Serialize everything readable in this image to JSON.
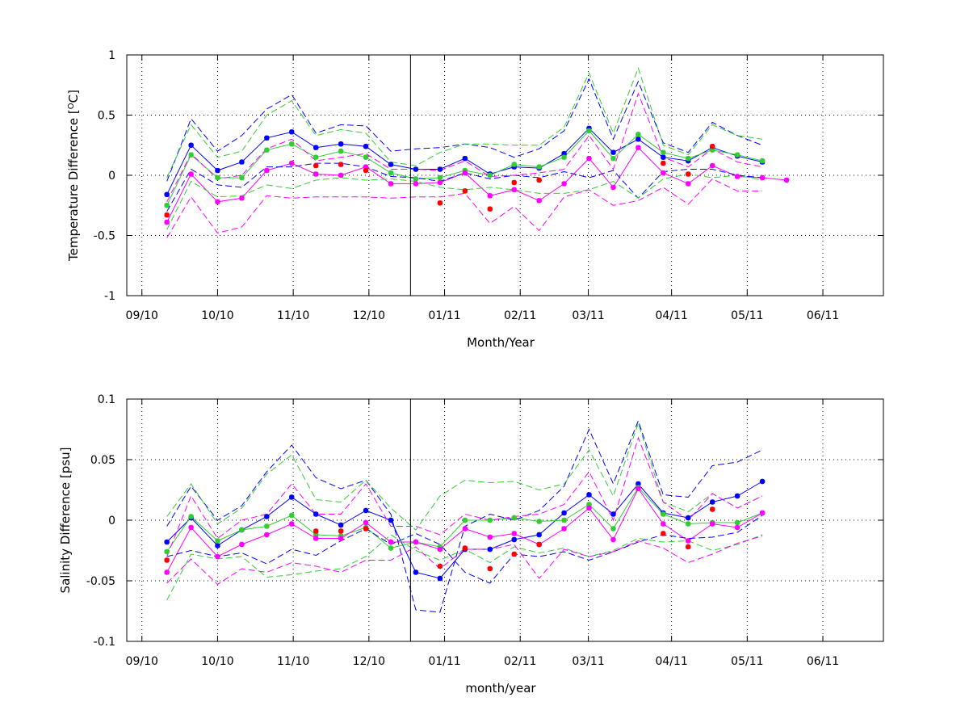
{
  "colors": {
    "blue": "#0000ff",
    "green": "#33cc33",
    "magenta": "#ff00ff",
    "red": "#ff0000",
    "black": "#000000",
    "grid": "#000000"
  },
  "chart_data": [
    {
      "type": "line",
      "title": "",
      "xlabel": "Month/Year",
      "ylabel": "Temperature Difference [°C]",
      "ylabel_pre": "Temperature Difference [",
      "ylabel_sup": "O",
      "ylabel_post": "C]",
      "xlim": [
        0,
        100
      ],
      "ylim": [
        -1,
        1
      ],
      "yticks": [
        -1,
        -0.5,
        0,
        0.5,
        1
      ],
      "ytick_labels": [
        "-1",
        "-0.5",
        "0",
        "0.5",
        "1"
      ],
      "xticks": [
        2,
        12,
        22,
        32,
        42,
        52,
        61,
        72,
        82,
        92
      ],
      "xtick_labels": [
        "09/10",
        "10/10",
        "11/10",
        "12/10",
        "01/11",
        "02/11",
        "03/11",
        "04/11",
        "05/11",
        "06/11"
      ],
      "vline_x": 37.5,
      "grid": true,
      "x": [
        5.3,
        8.5,
        12.0,
        15.2,
        18.5,
        21.8,
        25.0,
        28.3,
        31.6,
        34.9,
        38.2,
        41.4,
        44.7,
        48.0,
        51.2,
        54.5,
        57.8,
        61.1,
        64.3,
        67.6,
        70.9,
        74.2,
        77.4,
        80.7,
        84.0,
        87.2
      ],
      "series": [
        {
          "color": "blue",
          "style": "solid",
          "marker": true,
          "values": [
            -0.16,
            0.25,
            0.04,
            0.11,
            0.31,
            0.36,
            0.23,
            0.26,
            0.24,
            0.09,
            0.05,
            0.05,
            0.14,
            0.01,
            0.07,
            0.06,
            0.18,
            0.39,
            0.19,
            0.3,
            0.15,
            0.12,
            0.23,
            0.16,
            0.11,
            null
          ]
        },
        {
          "color": "green",
          "style": "solid",
          "marker": true,
          "values": [
            -0.25,
            0.17,
            -0.02,
            -0.02,
            0.21,
            0.26,
            0.15,
            0.2,
            0.15,
            0.02,
            -0.03,
            -0.02,
            0.04,
            0.0,
            0.09,
            0.07,
            0.15,
            0.37,
            0.14,
            0.34,
            0.19,
            0.14,
            0.21,
            0.17,
            0.12,
            null
          ]
        },
        {
          "color": "magenta",
          "style": "solid",
          "marker": true,
          "values": [
            -0.39,
            0.01,
            -0.22,
            -0.19,
            0.04,
            0.1,
            0.01,
            0.0,
            0.07,
            -0.07,
            -0.07,
            -0.06,
            0.02,
            -0.17,
            -0.12,
            -0.21,
            -0.07,
            0.14,
            -0.1,
            0.23,
            0.02,
            -0.07,
            0.08,
            -0.01,
            -0.02,
            -0.04
          ]
        },
        {
          "color": "red",
          "style": "none",
          "marker": true,
          "values": [
            -0.33,
            null,
            null,
            null,
            null,
            null,
            0.08,
            0.09,
            0.04,
            null,
            null,
            -0.23,
            -0.13,
            -0.28,
            -0.06,
            -0.04,
            null,
            null,
            null,
            null,
            0.1,
            0.01,
            0.24,
            null,
            null,
            null
          ]
        },
        {
          "color": "blue",
          "style": "dashed",
          "marker": false,
          "values": [
            -0.05,
            0.47,
            0.2,
            0.33,
            0.55,
            0.67,
            0.35,
            0.42,
            0.41,
            0.2,
            0.22,
            0.23,
            0.26,
            0.23,
            0.15,
            0.22,
            0.37,
            0.8,
            0.3,
            0.78,
            0.27,
            0.19,
            0.44,
            0.33,
            0.25,
            null
          ]
        },
        {
          "color": "blue",
          "style": "dashed",
          "marker": false,
          "values": [
            -0.3,
            0.05,
            -0.08,
            -0.1,
            0.07,
            0.07,
            0.1,
            0.1,
            0.07,
            -0.01,
            -0.02,
            -0.05,
            0.02,
            -0.03,
            0.0,
            -0.02,
            0.03,
            -0.02,
            0.04,
            -0.19,
            0.03,
            0.05,
            0.05,
            0.0,
            -0.02,
            null
          ]
        },
        {
          "color": "green",
          "style": "dashed",
          "marker": false,
          "values": [
            -0.02,
            0.42,
            0.15,
            0.2,
            0.5,
            0.62,
            0.33,
            0.38,
            0.35,
            0.11,
            0.08,
            0.19,
            0.26,
            0.26,
            0.25,
            0.25,
            0.4,
            0.85,
            0.35,
            0.89,
            0.25,
            0.17,
            0.42,
            0.33,
            0.3,
            null
          ]
        },
        {
          "color": "green",
          "style": "dashed",
          "marker": false,
          "values": [
            -0.45,
            -0.05,
            -0.18,
            -0.17,
            -0.08,
            -0.11,
            -0.04,
            -0.02,
            -0.04,
            -0.03,
            -0.05,
            -0.1,
            -0.12,
            -0.1,
            -0.12,
            -0.15,
            -0.15,
            -0.12,
            -0.05,
            -0.19,
            -0.03,
            0.01,
            -0.02,
            0.0,
            -0.04,
            null
          ]
        },
        {
          "color": "magenta",
          "style": "dashed",
          "marker": false,
          "values": [
            -0.52,
            -0.18,
            -0.48,
            -0.43,
            -0.17,
            -0.19,
            -0.18,
            -0.18,
            -0.18,
            -0.19,
            -0.18,
            -0.18,
            -0.15,
            -0.4,
            -0.26,
            -0.46,
            -0.18,
            -0.12,
            -0.25,
            -0.21,
            -0.1,
            -0.24,
            -0.03,
            -0.13,
            -0.13,
            null
          ]
        },
        {
          "color": "magenta",
          "style": "dashed",
          "marker": false,
          "values": [
            -0.22,
            0.18,
            -0.03,
            0.0,
            0.22,
            0.3,
            0.12,
            0.15,
            0.18,
            0.05,
            0.05,
            0.04,
            0.12,
            -0.01,
            0.0,
            0.02,
            0.05,
            0.33,
            0.05,
            0.68,
            0.15,
            0.07,
            0.22,
            0.11,
            0.07,
            null
          ]
        }
      ]
    },
    {
      "type": "line",
      "title": "",
      "xlabel": "month/year",
      "ylabel": "Salinity Difference [psu]",
      "xlim": [
        0,
        100
      ],
      "ylim": [
        -0.1,
        0.1
      ],
      "yticks": [
        -0.1,
        -0.05,
        0,
        0.05,
        0.1
      ],
      "ytick_labels": [
        "-0.1",
        "-0.05",
        "0",
        "0.05",
        "0.1"
      ],
      "xticks": [
        2,
        12,
        22,
        32,
        42,
        52,
        61,
        72,
        82,
        92
      ],
      "xtick_labels": [
        "09/10",
        "10/10",
        "11/10",
        "12/10",
        "01/11",
        "02/11",
        "03/11",
        "04/11",
        "05/11",
        "06/11"
      ],
      "vline_x": 37.5,
      "grid": true,
      "x": [
        5.3,
        8.5,
        12.0,
        15.2,
        18.5,
        21.8,
        25.0,
        28.3,
        31.6,
        34.9,
        38.2,
        41.4,
        44.7,
        48.0,
        51.2,
        54.5,
        57.8,
        61.1,
        64.3,
        67.6,
        70.9,
        74.2,
        77.4,
        80.7,
        84.0,
        87.2
      ],
      "series": [
        {
          "color": "blue",
          "style": "solid",
          "marker": true,
          "values": [
            -0.018,
            0.002,
            -0.021,
            -0.008,
            0.003,
            0.019,
            0.005,
            -0.004,
            0.008,
            0.0,
            -0.043,
            -0.048,
            -0.024,
            -0.024,
            -0.016,
            -0.012,
            0.006,
            0.021,
            0.005,
            0.03,
            0.006,
            0.002,
            0.015,
            0.02,
            0.032,
            null
          ]
        },
        {
          "color": "green",
          "style": "solid",
          "marker": true,
          "values": [
            -0.026,
            0.003,
            -0.017,
            -0.008,
            -0.005,
            0.004,
            -0.012,
            -0.013,
            -0.006,
            -0.023,
            -0.018,
            -0.022,
            0.0,
            0.0,
            0.002,
            -0.001,
            0.0,
            0.013,
            -0.007,
            0.027,
            0.005,
            -0.003,
            -0.002,
            -0.002,
            0.006,
            null
          ]
        },
        {
          "color": "magenta",
          "style": "solid",
          "marker": true,
          "values": [
            -0.043,
            -0.006,
            -0.03,
            -0.02,
            -0.012,
            -0.003,
            -0.015,
            -0.015,
            -0.002,
            -0.018,
            -0.018,
            -0.024,
            -0.007,
            -0.014,
            -0.011,
            -0.02,
            -0.007,
            0.01,
            -0.016,
            0.026,
            -0.003,
            -0.017,
            -0.003,
            -0.006,
            0.006,
            null
          ]
        },
        {
          "color": "red",
          "style": "none",
          "marker": true,
          "values": [
            -0.033,
            null,
            null,
            null,
            null,
            null,
            -0.009,
            -0.009,
            -0.007,
            null,
            null,
            -0.038,
            -0.023,
            -0.04,
            -0.028,
            -0.02,
            null,
            null,
            null,
            null,
            -0.011,
            -0.022,
            0.009,
            null,
            null,
            null
          ]
        },
        {
          "color": "blue",
          "style": "dashed",
          "marker": false,
          "values": [
            -0.005,
            0.028,
            0.0,
            0.012,
            0.04,
            0.062,
            0.035,
            0.026,
            0.033,
            0.005,
            -0.074,
            -0.076,
            -0.005,
            0.005,
            0.0,
            0.008,
            0.028,
            0.075,
            0.03,
            0.082,
            0.021,
            0.019,
            0.045,
            0.048,
            0.058,
            null
          ]
        },
        {
          "color": "blue",
          "style": "dashed",
          "marker": false,
          "values": [
            -0.03,
            -0.025,
            -0.03,
            -0.027,
            -0.036,
            -0.024,
            -0.029,
            -0.017,
            -0.007,
            -0.02,
            -0.011,
            -0.02,
            -0.043,
            -0.052,
            -0.028,
            -0.03,
            -0.026,
            -0.033,
            -0.026,
            -0.018,
            -0.012,
            -0.015,
            -0.014,
            -0.01,
            0.004,
            null
          ]
        },
        {
          "color": "green",
          "style": "dashed",
          "marker": false,
          "values": [
            0.003,
            0.03,
            -0.003,
            0.01,
            0.038,
            0.054,
            0.017,
            0.015,
            0.033,
            0.01,
            -0.008,
            0.02,
            0.033,
            0.031,
            0.032,
            0.025,
            0.03,
            0.058,
            0.02,
            0.08,
            0.015,
            0.007,
            0.022,
            0.01,
            0.02,
            null
          ]
        },
        {
          "color": "green",
          "style": "dashed",
          "marker": false,
          "values": [
            -0.066,
            -0.028,
            -0.032,
            -0.03,
            -0.047,
            -0.045,
            -0.042,
            -0.04,
            -0.03,
            -0.012,
            -0.025,
            -0.033,
            -0.024,
            -0.035,
            -0.022,
            -0.027,
            -0.023,
            -0.03,
            -0.025,
            -0.015,
            -0.018,
            -0.017,
            -0.025,
            -0.02,
            -0.012,
            null
          ]
        },
        {
          "color": "magenta",
          "style": "dashed",
          "marker": false,
          "values": [
            -0.052,
            -0.032,
            -0.053,
            -0.04,
            -0.043,
            -0.035,
            -0.038,
            -0.043,
            -0.033,
            -0.033,
            -0.022,
            -0.04,
            -0.024,
            -0.024,
            -0.02,
            -0.048,
            -0.024,
            -0.03,
            -0.026,
            -0.017,
            -0.023,
            -0.035,
            -0.028,
            -0.019,
            -0.013,
            null
          ]
        },
        {
          "color": "magenta",
          "style": "dashed",
          "marker": false,
          "values": [
            -0.03,
            0.02,
            -0.015,
            0.0,
            0.005,
            0.03,
            0.005,
            0.005,
            0.03,
            -0.005,
            -0.005,
            -0.012,
            0.005,
            0.0,
            0.003,
            0.005,
            0.013,
            0.04,
            0.0,
            0.068,
            0.015,
            0.0,
            0.022,
            0.01,
            0.02,
            null
          ]
        }
      ]
    }
  ]
}
